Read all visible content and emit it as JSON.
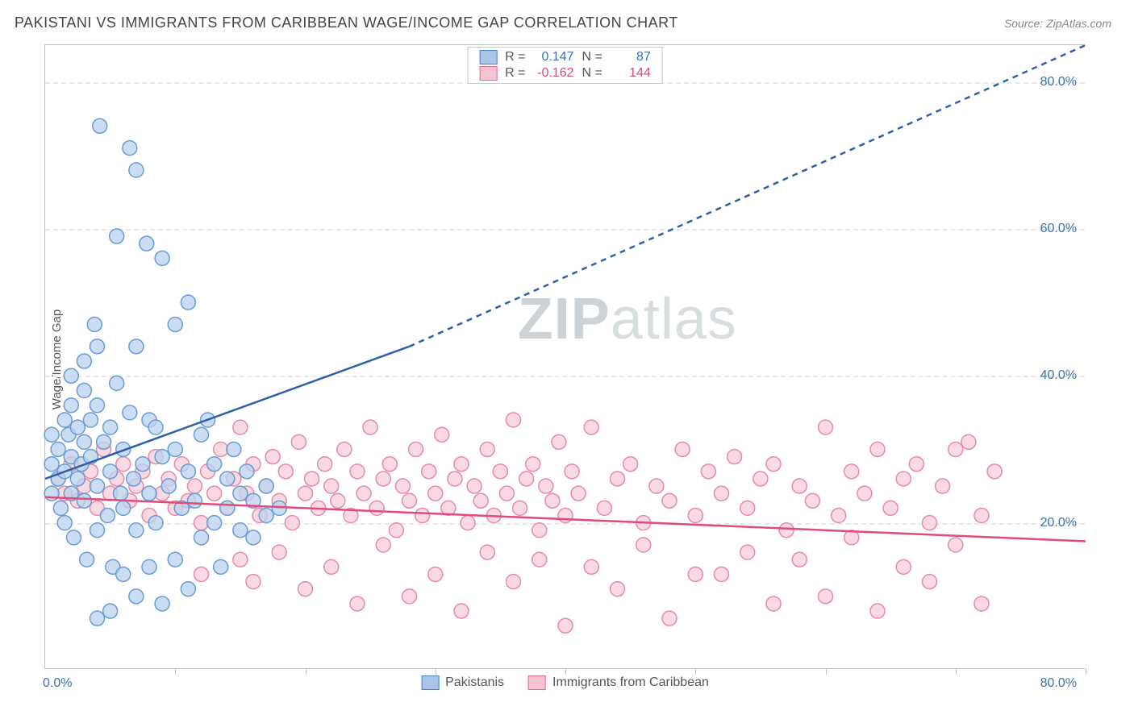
{
  "header": {
    "title": "PAKISTANI VS IMMIGRANTS FROM CARIBBEAN WAGE/INCOME GAP CORRELATION CHART",
    "source_prefix": "Source: ",
    "source": "ZipAtlas.com"
  },
  "axes": {
    "ylabel": "Wage/Income Gap",
    "xlim": [
      0,
      80
    ],
    "ylim": [
      0,
      85
    ],
    "yticks": [
      20,
      40,
      60,
      80
    ],
    "ytick_labels": [
      "20.0%",
      "40.0%",
      "60.0%",
      "80.0%"
    ],
    "xticks": [
      10,
      20,
      30,
      40,
      50,
      60,
      70,
      80
    ],
    "x_origin_label": "0.0%",
    "x_max_label": "80.0%",
    "tick_label_color": "#3b6fb5",
    "grid_color": "#e8e8e8"
  },
  "watermark": {
    "part1": "ZIP",
    "part2": "atlas"
  },
  "stat_legend": {
    "rows": [
      {
        "swatch_fill": "#a9c6ea",
        "swatch_border": "#4a7fc4",
        "r_label": "R =",
        "r_value": "0.147",
        "n_label": "N =",
        "n_value": "87",
        "value_color": "#3b6fb5"
      },
      {
        "swatch_fill": "#f6c3d1",
        "swatch_border": "#e06c91",
        "r_label": "R =",
        "r_value": "-0.162",
        "n_label": "N =",
        "n_value": "144",
        "value_color": "#d94a74"
      }
    ]
  },
  "bottom_legend": {
    "items": [
      {
        "swatch_fill": "#a9c6ea",
        "swatch_border": "#4a7fc4",
        "label": "Pakistanis"
      },
      {
        "swatch_fill": "#f6c3d1",
        "swatch_border": "#e06c91",
        "label": "Immigrants from Caribbean"
      }
    ]
  },
  "series": {
    "pakistanis": {
      "marker_fill": "#b9d1ed",
      "marker_stroke": "#6a9bd4",
      "marker_opacity": 0.75,
      "marker_radius": 9,
      "trend": {
        "color": "#2e5fa8",
        "solid_to_x": 28,
        "y_start": 26,
        "y_at_solid_end": 44,
        "y_at_xmax": 85,
        "width": 2.5
      },
      "points": [
        [
          0.5,
          28
        ],
        [
          0.5,
          32
        ],
        [
          0.5,
          24
        ],
        [
          1,
          30
        ],
        [
          1,
          26
        ],
        [
          1.2,
          22
        ],
        [
          1.5,
          34
        ],
        [
          1.5,
          27
        ],
        [
          1.5,
          20
        ],
        [
          1.8,
          32
        ],
        [
          2,
          40
        ],
        [
          2,
          36
        ],
        [
          2,
          29
        ],
        [
          2,
          24
        ],
        [
          2.2,
          18
        ],
        [
          2.5,
          33
        ],
        [
          2.5,
          26
        ],
        [
          2.8,
          28
        ],
        [
          3,
          42
        ],
        [
          3,
          38
        ],
        [
          3,
          31
        ],
        [
          3,
          23
        ],
        [
          3.2,
          15
        ],
        [
          3.5,
          29
        ],
        [
          3.5,
          34
        ],
        [
          3.8,
          47
        ],
        [
          4,
          44
        ],
        [
          4,
          36
        ],
        [
          4,
          25
        ],
        [
          4,
          19
        ],
        [
          4.2,
          74
        ],
        [
          4.5,
          31
        ],
        [
          4.8,
          21
        ],
        [
          5,
          33
        ],
        [
          5,
          27
        ],
        [
          5.2,
          14
        ],
        [
          5.5,
          59
        ],
        [
          5.5,
          39
        ],
        [
          5.8,
          24
        ],
        [
          6,
          30
        ],
        [
          6,
          22
        ],
        [
          6.5,
          71
        ],
        [
          6.5,
          35
        ],
        [
          6.8,
          26
        ],
        [
          7,
          68
        ],
        [
          7,
          44
        ],
        [
          7,
          19
        ],
        [
          7.5,
          28
        ],
        [
          7.8,
          58
        ],
        [
          8,
          34
        ],
        [
          8,
          24
        ],
        [
          8.5,
          33
        ],
        [
          8.5,
          20
        ],
        [
          9,
          56
        ],
        [
          9,
          29
        ],
        [
          9.5,
          25
        ],
        [
          10,
          47
        ],
        [
          10,
          30
        ],
        [
          10,
          15
        ],
        [
          10.5,
          22
        ],
        [
          11,
          50
        ],
        [
          11,
          27
        ],
        [
          11.5,
          23
        ],
        [
          12,
          32
        ],
        [
          12,
          18
        ],
        [
          12.5,
          34
        ],
        [
          13,
          20
        ],
        [
          13,
          28
        ],
        [
          13.5,
          14
        ],
        [
          14,
          26
        ],
        [
          14,
          22
        ],
        [
          14.5,
          30
        ],
        [
          15,
          24
        ],
        [
          15,
          19
        ],
        [
          15.5,
          27
        ],
        [
          16,
          23
        ],
        [
          16,
          18
        ],
        [
          17,
          25
        ],
        [
          17,
          21
        ],
        [
          18,
          22
        ],
        [
          4,
          7
        ],
        [
          5,
          8
        ],
        [
          7,
          10
        ],
        [
          9,
          9
        ],
        [
          11,
          11
        ],
        [
          6,
          13
        ],
        [
          8,
          14
        ]
      ]
    },
    "caribbean": {
      "marker_fill": "#f7cdd9",
      "marker_stroke": "#e78aa8",
      "marker_opacity": 0.75,
      "marker_radius": 9,
      "trend": {
        "color": "#e14b7a",
        "y_start": 23.5,
        "y_end": 17.5,
        "width": 2.5
      },
      "points": [
        [
          1,
          26
        ],
        [
          1.5,
          24
        ],
        [
          2,
          28
        ],
        [
          2.5,
          23
        ],
        [
          3,
          25
        ],
        [
          3.5,
          27
        ],
        [
          4,
          22
        ],
        [
          4.5,
          30
        ],
        [
          5,
          24
        ],
        [
          5.5,
          26
        ],
        [
          6,
          28
        ],
        [
          6.5,
          23
        ],
        [
          7,
          25
        ],
        [
          7.5,
          27
        ],
        [
          8,
          21
        ],
        [
          8.5,
          29
        ],
        [
          9,
          24
        ],
        [
          9.5,
          26
        ],
        [
          10,
          22
        ],
        [
          10.5,
          28
        ],
        [
          11,
          23
        ],
        [
          11.5,
          25
        ],
        [
          12,
          20
        ],
        [
          12.5,
          27
        ],
        [
          13,
          24
        ],
        [
          13.5,
          30
        ],
        [
          14,
          22
        ],
        [
          14.5,
          26
        ],
        [
          15,
          33
        ],
        [
          15.5,
          24
        ],
        [
          16,
          28
        ],
        [
          16.5,
          21
        ],
        [
          17,
          25
        ],
        [
          17.5,
          29
        ],
        [
          18,
          23
        ],
        [
          18.5,
          27
        ],
        [
          19,
          20
        ],
        [
          19.5,
          31
        ],
        [
          20,
          24
        ],
        [
          20.5,
          26
        ],
        [
          21,
          22
        ],
        [
          21.5,
          28
        ],
        [
          22,
          25
        ],
        [
          22.5,
          23
        ],
        [
          23,
          30
        ],
        [
          23.5,
          21
        ],
        [
          24,
          27
        ],
        [
          24.5,
          24
        ],
        [
          25,
          33
        ],
        [
          25.5,
          22
        ],
        [
          26,
          26
        ],
        [
          26.5,
          28
        ],
        [
          27,
          19
        ],
        [
          27.5,
          25
        ],
        [
          28,
          23
        ],
        [
          28.5,
          30
        ],
        [
          29,
          21
        ],
        [
          29.5,
          27
        ],
        [
          30,
          24
        ],
        [
          30.5,
          32
        ],
        [
          31,
          22
        ],
        [
          31.5,
          26
        ],
        [
          32,
          28
        ],
        [
          32.5,
          20
        ],
        [
          33,
          25
        ],
        [
          33.5,
          23
        ],
        [
          34,
          30
        ],
        [
          34.5,
          21
        ],
        [
          35,
          27
        ],
        [
          35.5,
          24
        ],
        [
          36,
          34
        ],
        [
          36.5,
          22
        ],
        [
          37,
          26
        ],
        [
          37.5,
          28
        ],
        [
          38,
          19
        ],
        [
          38.5,
          25
        ],
        [
          39,
          23
        ],
        [
          39.5,
          31
        ],
        [
          40,
          21
        ],
        [
          40.5,
          27
        ],
        [
          41,
          24
        ],
        [
          42,
          33
        ],
        [
          43,
          22
        ],
        [
          44,
          26
        ],
        [
          45,
          28
        ],
        [
          46,
          20
        ],
        [
          47,
          25
        ],
        [
          48,
          23
        ],
        [
          49,
          30
        ],
        [
          50,
          21
        ],
        [
          51,
          27
        ],
        [
          52,
          24
        ],
        [
          53,
          29
        ],
        [
          54,
          22
        ],
        [
          55,
          26
        ],
        [
          56,
          28
        ],
        [
          57,
          19
        ],
        [
          58,
          25
        ],
        [
          59,
          23
        ],
        [
          60,
          33
        ],
        [
          61,
          21
        ],
        [
          62,
          27
        ],
        [
          63,
          24
        ],
        [
          64,
          30
        ],
        [
          65,
          22
        ],
        [
          66,
          26
        ],
        [
          67,
          28
        ],
        [
          68,
          20
        ],
        [
          69,
          25
        ],
        [
          70,
          30
        ],
        [
          71,
          31
        ],
        [
          72,
          21
        ],
        [
          73,
          27
        ],
        [
          15,
          15
        ],
        [
          18,
          16
        ],
        [
          22,
          14
        ],
        [
          26,
          17
        ],
        [
          30,
          13
        ],
        [
          34,
          16
        ],
        [
          38,
          15
        ],
        [
          42,
          14
        ],
        [
          46,
          17
        ],
        [
          50,
          13
        ],
        [
          54,
          16
        ],
        [
          58,
          15
        ],
        [
          62,
          18
        ],
        [
          66,
          14
        ],
        [
          70,
          17
        ],
        [
          20,
          11
        ],
        [
          28,
          10
        ],
        [
          36,
          12
        ],
        [
          44,
          11
        ],
        [
          52,
          13
        ],
        [
          60,
          10
        ],
        [
          68,
          12
        ],
        [
          32,
          8
        ],
        [
          48,
          7
        ],
        [
          56,
          9
        ],
        [
          64,
          8
        ],
        [
          72,
          9
        ],
        [
          40,
          6
        ],
        [
          24,
          9
        ],
        [
          16,
          12
        ],
        [
          12,
          13
        ]
      ]
    }
  }
}
